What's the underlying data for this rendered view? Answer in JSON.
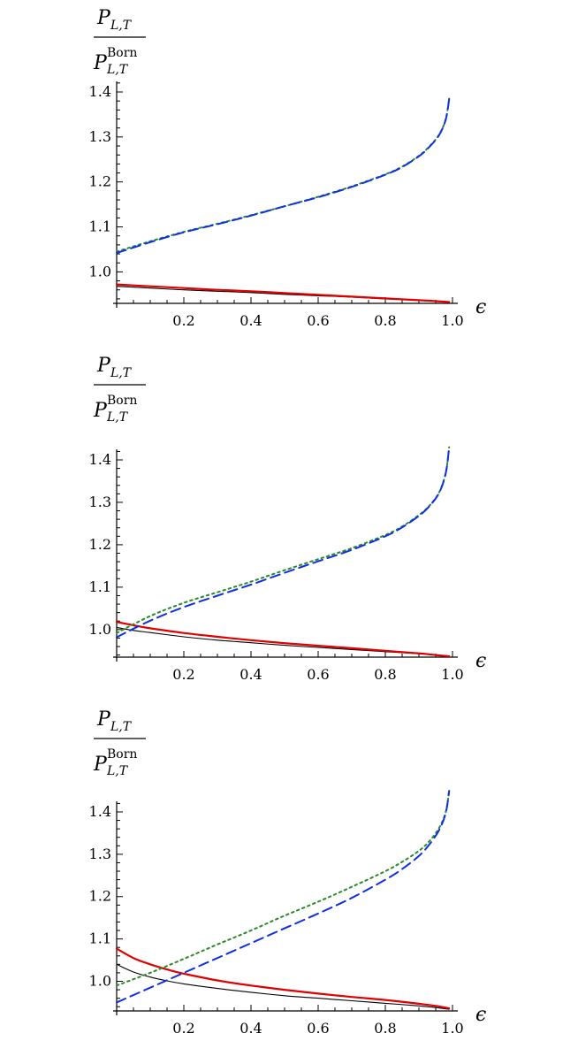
{
  "chart_data": [
    {
      "type": "line",
      "ylabel": {
        "numerator": "P",
        "numerator_sub": "L,T",
        "denominator": "P",
        "denominator_sub": "L,T",
        "denominator_sup": "Born"
      },
      "xlabel": "ϵ",
      "xlim": [
        0,
        1.0
      ],
      "ylim": [
        0.93,
        1.4
      ],
      "x_ticks": [
        0.2,
        0.4,
        0.6,
        0.8,
        1.0
      ],
      "x_tick_labels": [
        "0.2",
        "0.4",
        "0.6",
        "0.8",
        "1.0"
      ],
      "y_ticks": [
        1.0,
        1.1,
        1.2,
        1.3,
        1.4
      ],
      "y_tick_labels": [
        "1.0",
        "1.1",
        "1.2",
        "1.3",
        "1.4"
      ],
      "grid": false,
      "series": [
        {
          "style": "solid",
          "color": "#000000",
          "x": [
            0,
            0.1,
            0.2,
            0.3,
            0.4,
            0.5,
            0.6,
            0.7,
            0.8,
            0.9,
            0.95,
            0.99
          ],
          "y": [
            0.968,
            0.964,
            0.96,
            0.957,
            0.954,
            0.95,
            0.947,
            0.944,
            0.94,
            0.937,
            0.935,
            0.933
          ]
        },
        {
          "style": "solid",
          "color": "#e00000",
          "x": [
            0,
            0.1,
            0.2,
            0.3,
            0.4,
            0.5,
            0.6,
            0.7,
            0.8,
            0.9,
            0.95,
            0.99
          ],
          "y": [
            0.972,
            0.968,
            0.964,
            0.96,
            0.957,
            0.953,
            0.949,
            0.945,
            0.941,
            0.937,
            0.935,
            0.933
          ]
        },
        {
          "style": "dotted",
          "color": "#2a8a2a",
          "x": [
            0,
            0.1,
            0.2,
            0.3,
            0.4,
            0.5,
            0.6,
            0.7,
            0.8,
            0.85,
            0.9,
            0.93,
            0.96,
            0.98,
            0.99
          ],
          "y": [
            1.045,
            1.068,
            1.089,
            1.107,
            1.126,
            1.146,
            1.167,
            1.19,
            1.217,
            1.234,
            1.258,
            1.278,
            1.305,
            1.34,
            1.385
          ]
        },
        {
          "style": "dashed",
          "color": "#1030e0",
          "x": [
            0,
            0.1,
            0.2,
            0.3,
            0.4,
            0.5,
            0.6,
            0.7,
            0.8,
            0.85,
            0.9,
            0.93,
            0.96,
            0.98,
            0.99
          ],
          "y": [
            1.042,
            1.066,
            1.088,
            1.106,
            1.125,
            1.146,
            1.166,
            1.189,
            1.216,
            1.233,
            1.257,
            1.277,
            1.304,
            1.339,
            1.384
          ]
        }
      ]
    },
    {
      "type": "line",
      "ylabel": {
        "numerator": "P",
        "numerator_sub": "L,T",
        "denominator": "P",
        "denominator_sub": "L,T",
        "denominator_sup": "Born"
      },
      "xlabel": "ϵ",
      "xlim": [
        0,
        1.0
      ],
      "ylim": [
        0.935,
        1.44
      ],
      "x_ticks": [
        0.2,
        0.4,
        0.6,
        0.8,
        1.0
      ],
      "x_tick_labels": [
        "0.2",
        "0.4",
        "0.6",
        "0.8",
        "1.0"
      ],
      "y_ticks": [
        1.0,
        1.1,
        1.2,
        1.3,
        1.4
      ],
      "y_tick_labels": [
        "1.0",
        "1.1",
        "1.2",
        "1.3",
        "1.4"
      ],
      "grid": false,
      "series": [
        {
          "style": "solid",
          "color": "#000000",
          "x": [
            0,
            0.05,
            0.1,
            0.2,
            0.3,
            0.4,
            0.5,
            0.6,
            0.7,
            0.8,
            0.9,
            0.95,
            0.99
          ],
          "y": [
            1.005,
            0.998,
            0.993,
            0.983,
            0.975,
            0.969,
            0.963,
            0.958,
            0.953,
            0.948,
            0.943,
            0.94,
            0.937
          ]
        },
        {
          "style": "solid",
          "color": "#e00000",
          "x": [
            0,
            0.05,
            0.1,
            0.2,
            0.3,
            0.4,
            0.5,
            0.6,
            0.7,
            0.8,
            0.9,
            0.95,
            0.99
          ],
          "y": [
            1.018,
            1.01,
            1.003,
            0.992,
            0.983,
            0.975,
            0.968,
            0.962,
            0.956,
            0.95,
            0.944,
            0.94,
            0.937
          ]
        },
        {
          "style": "dotted",
          "color": "#2a8a2a",
          "x": [
            0,
            0.1,
            0.2,
            0.3,
            0.4,
            0.5,
            0.6,
            0.7,
            0.8,
            0.85,
            0.9,
            0.93,
            0.96,
            0.98,
            0.99
          ],
          "y": [
            0.992,
            1.032,
            1.063,
            1.088,
            1.113,
            1.14,
            1.166,
            1.192,
            1.223,
            1.243,
            1.27,
            1.291,
            1.323,
            1.37,
            1.43
          ]
        },
        {
          "style": "dashed",
          "color": "#1030e0",
          "x": [
            0,
            0.1,
            0.2,
            0.3,
            0.4,
            0.5,
            0.6,
            0.7,
            0.8,
            0.85,
            0.9,
            0.93,
            0.96,
            0.98,
            0.99
          ],
          "y": [
            0.982,
            1.021,
            1.053,
            1.08,
            1.106,
            1.134,
            1.161,
            1.188,
            1.22,
            1.241,
            1.268,
            1.29,
            1.322,
            1.369,
            1.43
          ]
        }
      ]
    },
    {
      "type": "line",
      "ylabel": {
        "numerator": "P",
        "numerator_sub": "L,T",
        "denominator": "P",
        "denominator_sub": "L,T",
        "denominator_sup": "Born"
      },
      "xlabel": "ϵ",
      "xlim": [
        0,
        1.0
      ],
      "ylim": [
        0.93,
        1.46
      ],
      "x_ticks": [
        0.2,
        0.4,
        0.6,
        0.8,
        1.0
      ],
      "x_tick_labels": [
        "0.2",
        "0.4",
        "0.6",
        "0.8",
        "1.0"
      ],
      "y_ticks": [
        1.0,
        1.1,
        1.2,
        1.3,
        1.4
      ],
      "y_tick_labels": [
        "1.0",
        "1.1",
        "1.2",
        "1.3",
        "1.4"
      ],
      "grid": false,
      "series": [
        {
          "style": "solid",
          "color": "#000000",
          "x": [
            0,
            0.05,
            0.1,
            0.15,
            0.2,
            0.3,
            0.4,
            0.5,
            0.6,
            0.7,
            0.8,
            0.9,
            0.95,
            0.99
          ],
          "y": [
            1.04,
            1.022,
            1.01,
            1.001,
            0.994,
            0.983,
            0.974,
            0.966,
            0.96,
            0.954,
            0.948,
            0.942,
            0.938,
            0.934
          ]
        },
        {
          "style": "solid",
          "color": "#e00000",
          "x": [
            0,
            0.05,
            0.1,
            0.15,
            0.2,
            0.3,
            0.4,
            0.5,
            0.6,
            0.7,
            0.8,
            0.9,
            0.95,
            0.99
          ],
          "y": [
            1.077,
            1.055,
            1.04,
            1.028,
            1.018,
            1.002,
            0.99,
            0.98,
            0.971,
            0.963,
            0.956,
            0.947,
            0.942,
            0.936
          ]
        },
        {
          "style": "dotted",
          "color": "#2a8a2a",
          "x": [
            0,
            0.1,
            0.2,
            0.3,
            0.4,
            0.5,
            0.6,
            0.7,
            0.8,
            0.85,
            0.9,
            0.93,
            0.96,
            0.98,
            0.99
          ],
          "y": [
            0.99,
            1.02,
            1.053,
            1.087,
            1.12,
            1.155,
            1.188,
            1.223,
            1.26,
            1.282,
            1.308,
            1.33,
            1.362,
            1.4,
            1.45
          ]
        },
        {
          "style": "dashed",
          "color": "#1030e0",
          "x": [
            0,
            0.1,
            0.2,
            0.3,
            0.4,
            0.5,
            0.6,
            0.7,
            0.8,
            0.85,
            0.9,
            0.93,
            0.96,
            0.98,
            0.99
          ],
          "y": [
            0.95,
            0.985,
            1.02,
            1.055,
            1.09,
            1.125,
            1.16,
            1.197,
            1.24,
            1.265,
            1.296,
            1.322,
            1.357,
            1.398,
            1.45
          ]
        }
      ]
    }
  ]
}
